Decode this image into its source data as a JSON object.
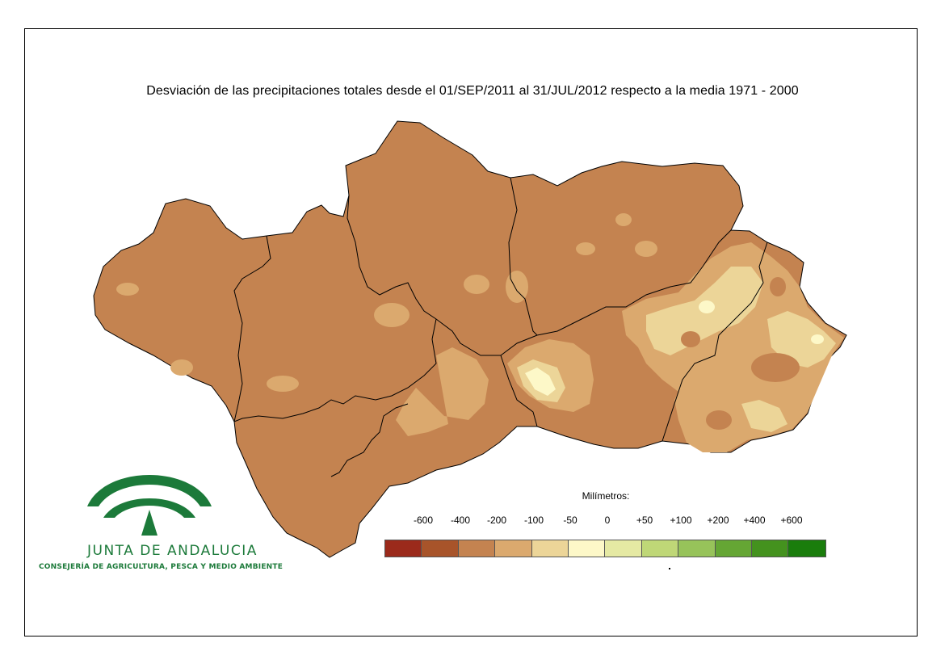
{
  "title": "Desviación de las precipitaciones totales desde el 01/SEP/2011 al  31/JUL/2012 respecto a la media 1971 - 2000",
  "legend": {
    "title": "Milímetros:",
    "labels": [
      "-600",
      "-400",
      "-200",
      "-100",
      "-50",
      "0",
      "+50",
      "+100",
      "+200",
      "+400",
      "+600"
    ],
    "colors": [
      "#9b2a1b",
      "#a8542a",
      "#c48350",
      "#dba96e",
      "#ecd598",
      "#fdf8c8",
      "#e5e9a3",
      "#bfd777",
      "#97c35a",
      "#65a634",
      "#44921e",
      "#1a7d0c"
    ]
  },
  "map": {
    "base_color": "#c48350",
    "provinces": [
      "Huelva",
      "Sevilla",
      "Córdoba",
      "Jaén",
      "Cádiz",
      "Málaga",
      "Granada",
      "Almería"
    ]
  },
  "logo": {
    "name": "JUNTA DE ANDALUCIA",
    "subtitle": "CONSEJERÍA DE AGRICULTURA, PESCA Y MEDIO AMBIENTE",
    "color": "#1c7a3a"
  }
}
